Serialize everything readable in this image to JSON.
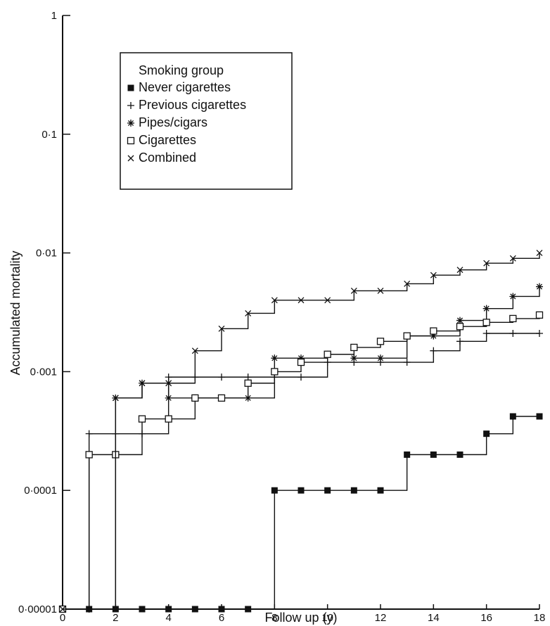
{
  "chart_data": {
    "type": "line",
    "step": true,
    "xlabel": "Follow up (y)",
    "ylabel": "Accumulated mortality",
    "x_ticks": [
      0,
      2,
      4,
      6,
      8,
      10,
      12,
      14,
      16,
      18
    ],
    "x_tick_labels": [
      "0",
      "2",
      "4",
      "6",
      "8",
      "10",
      "12",
      "14",
      "16",
      "18"
    ],
    "xlim": [
      0,
      18
    ],
    "y_scale": "log",
    "y_ticks": [
      1e-05,
      0.0001,
      0.001,
      0.01,
      0.1,
      1
    ],
    "y_tick_labels": [
      "0·00001",
      "0·0001",
      "0·001",
      "0·01",
      "0·1",
      "1"
    ],
    "ylim": [
      1e-05,
      1
    ],
    "grid": false,
    "legend": {
      "title": "Smoking group",
      "placement": "top-left"
    },
    "x": [
      0,
      1,
      2,
      3,
      4,
      5,
      6,
      7,
      8,
      9,
      10,
      11,
      12,
      13,
      14,
      15,
      16,
      17,
      18
    ],
    "series": [
      {
        "name": "Never cigarettes",
        "marker": "filled-square",
        "values": [
          1e-05,
          1e-05,
          1e-05,
          1e-05,
          1e-05,
          1e-05,
          1e-05,
          1e-05,
          0.0001,
          0.0001,
          0.0001,
          0.0001,
          0.0001,
          0.0002,
          0.0002,
          0.0002,
          0.0003,
          0.00042,
          0.00042
        ]
      },
      {
        "name": "Previous cigarettes",
        "marker": "plus",
        "values": [
          1e-05,
          0.0003,
          0.0003,
          0.0003,
          0.0009,
          0.0009,
          0.0009,
          0.0009,
          0.0009,
          0.0009,
          0.0012,
          0.0012,
          0.0012,
          0.0012,
          0.0015,
          0.0018,
          0.0021,
          0.0021,
          0.0021
        ]
      },
      {
        "name": "Pipes/cigars",
        "marker": "asterisk",
        "values": [
          1e-05,
          1e-05,
          0.0006,
          0.0008,
          0.0006,
          0.0006,
          0.0006,
          0.0006,
          0.0013,
          0.0013,
          0.0014,
          0.0013,
          0.0013,
          0.002,
          0.002,
          0.0027,
          0.0034,
          0.0043,
          0.0052
        ]
      },
      {
        "name": "Cigarettes",
        "marker": "open-square",
        "values": [
          1e-05,
          0.0002,
          0.0002,
          0.0004,
          0.0004,
          0.0006,
          0.0006,
          0.0008,
          0.001,
          0.0012,
          0.0014,
          0.0016,
          0.0018,
          0.002,
          0.0022,
          0.0024,
          0.0026,
          0.0028,
          0.003
        ]
      },
      {
        "name": "Combined",
        "marker": "cross",
        "values": [
          1e-05,
          1e-05,
          0.0006,
          0.0008,
          0.0008,
          0.0015,
          0.0023,
          0.0031,
          0.004,
          0.004,
          0.004,
          0.0048,
          0.0048,
          0.0055,
          0.0065,
          0.0072,
          0.0082,
          0.009,
          0.01
        ]
      }
    ]
  }
}
